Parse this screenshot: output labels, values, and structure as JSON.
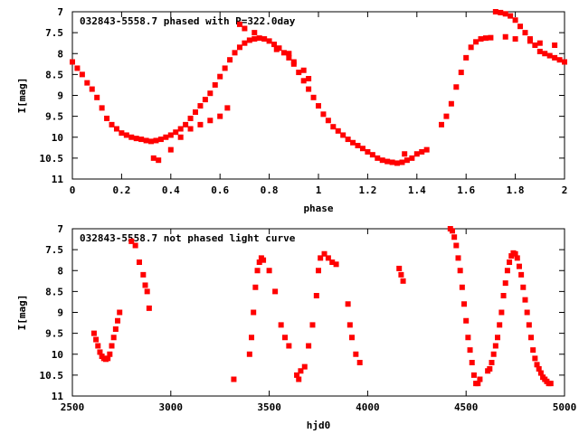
{
  "chart_data": [
    {
      "type": "scatter",
      "title": "032843-5558.7 phased with P=322.0day",
      "xlabel": "phase",
      "ylabel": "I[mag]",
      "xlim": [
        0,
        2
      ],
      "ylim": [
        11,
        7
      ],
      "y_inverted": true,
      "xticks": [
        "0",
        "0.2",
        "0.4",
        "0.6",
        "0.8",
        "1",
        "1.2",
        "1.4",
        "1.6",
        "1.8",
        "2"
      ],
      "yticks": [
        "7",
        "7.5",
        "8",
        "8.5",
        "9",
        "9.5",
        "10",
        "10.5",
        "11"
      ],
      "marker_color": "#ff0000",
      "series": [
        {
          "x": [
            0.0,
            0.02,
            0.04,
            0.06,
            0.08,
            0.1,
            0.12,
            0.14,
            0.16,
            0.18,
            0.2,
            0.22,
            0.24,
            0.26,
            0.28,
            0.3,
            0.32,
            0.34,
            0.36,
            0.38,
            0.4,
            0.42,
            0.44,
            0.46,
            0.48,
            0.5,
            0.52,
            0.54,
            0.56,
            0.58,
            0.6,
            0.62,
            0.64,
            0.66,
            0.68,
            0.7,
            0.72,
            0.74,
            0.76,
            0.78,
            0.8,
            0.82,
            0.84,
            0.86,
            0.88,
            0.9,
            0.92,
            0.94,
            0.96,
            0.98,
            1.0,
            1.02,
            1.04,
            1.06,
            1.08,
            1.1,
            1.12,
            1.14,
            1.16,
            1.18,
            1.2,
            1.22,
            1.24,
            1.26,
            1.28,
            1.3,
            1.32,
            1.34,
            1.36,
            1.38,
            1.4,
            1.5,
            1.52,
            1.54,
            1.56,
            1.58,
            1.6,
            1.62,
            1.64,
            1.66,
            1.68,
            1.7,
            1.72,
            1.74,
            1.76,
            1.78,
            1.8,
            1.82,
            1.84,
            1.86,
            1.88,
            1.9,
            1.92,
            1.94,
            1.96,
            1.98,
            2.0,
            0.33,
            0.35,
            0.4,
            0.44,
            0.48,
            0.52,
            0.56,
            0.6,
            0.63,
            0.68,
            0.7,
            0.74,
            0.83,
            0.88,
            0.9,
            0.94,
            0.96,
            1.35,
            1.42,
            1.44,
            1.76,
            1.8,
            1.86,
            1.9,
            1.96
          ],
          "y": [
            8.2,
            8.35,
            8.5,
            8.7,
            8.85,
            9.05,
            9.3,
            9.55,
            9.7,
            9.8,
            9.9,
            9.95,
            10.0,
            10.03,
            10.05,
            10.08,
            10.1,
            10.08,
            10.05,
            10.0,
            9.95,
            9.88,
            9.8,
            9.7,
            9.55,
            9.4,
            9.25,
            9.1,
            8.95,
            8.75,
            8.55,
            8.35,
            8.15,
            7.98,
            7.85,
            7.75,
            7.68,
            7.65,
            7.63,
            7.65,
            7.7,
            7.78,
            7.87,
            7.98,
            8.1,
            8.25,
            8.45,
            8.65,
            8.85,
            9.05,
            9.25,
            9.45,
            9.6,
            9.75,
            9.85,
            9.95,
            10.05,
            10.13,
            10.2,
            10.27,
            10.35,
            10.42,
            10.5,
            10.55,
            10.58,
            10.6,
            10.62,
            10.6,
            10.55,
            10.5,
            10.4,
            9.7,
            9.5,
            9.2,
            8.8,
            8.45,
            8.1,
            7.85,
            7.72,
            7.65,
            7.63,
            7.62,
            7.0,
            7.02,
            7.05,
            7.1,
            7.2,
            7.35,
            7.5,
            7.65,
            7.8,
            7.95,
            8.0,
            8.05,
            8.1,
            8.15,
            8.2,
            10.5,
            10.55,
            10.3,
            10.0,
            9.8,
            9.7,
            9.6,
            9.5,
            9.3,
            7.3,
            7.4,
            7.5,
            7.9,
            8.0,
            8.2,
            8.4,
            8.6,
            10.4,
            10.35,
            10.3,
            7.6,
            7.65,
            7.7,
            7.75,
            7.8
          ]
        }
      ]
    },
    {
      "type": "scatter",
      "title": "032843-5558.7 not phased light curve",
      "xlabel": "hjd0",
      "ylabel": "I[mag]",
      "xlim": [
        2500,
        5000
      ],
      "ylim": [
        11,
        7
      ],
      "y_inverted": true,
      "xticks": [
        "2500",
        "3000",
        "3500",
        "4000",
        "4500",
        "5000"
      ],
      "yticks": [
        "7",
        "7.5",
        "8",
        "8.5",
        "9",
        "9.5",
        "10",
        "10.5",
        "11"
      ],
      "marker_color": "#ff0000",
      "series": [
        {
          "x": [
            2610,
            2620,
            2630,
            2640,
            2650,
            2660,
            2670,
            2680,
            2690,
            2700,
            2710,
            2720,
            2730,
            2740,
            2800,
            2820,
            2840,
            2860,
            2870,
            2880,
            2890,
            3320,
            3400,
            3410,
            3420,
            3430,
            3440,
            3450,
            3460,
            3470,
            3500,
            3530,
            3560,
            3580,
            3600,
            3640,
            3650,
            3660,
            3680,
            3700,
            3720,
            3740,
            3750,
            3760,
            3780,
            3800,
            3820,
            3840,
            3900,
            3910,
            3920,
            3940,
            3960,
            4160,
            4170,
            4180,
            4420,
            4430,
            4440,
            4450,
            4460,
            4470,
            4480,
            4490,
            4500,
            4510,
            4520,
            4530,
            4540,
            4550,
            4560,
            4570,
            4610,
            4620,
            4630,
            4640,
            4650,
            4660,
            4670,
            4680,
            4690,
            4700,
            4710,
            4720,
            4730,
            4740,
            4750,
            4760,
            4770,
            4780,
            4790,
            4800,
            4810,
            4820,
            4830,
            4840,
            4850,
            4860,
            4870,
            4880,
            4890,
            4900,
            4910,
            4920,
            4930
          ],
          "y": [
            9.5,
            9.65,
            9.8,
            9.95,
            10.05,
            10.1,
            10.12,
            10.1,
            10.0,
            9.8,
            9.6,
            9.4,
            9.2,
            9.0,
            7.3,
            7.4,
            7.8,
            8.1,
            8.35,
            8.5,
            8.9,
            10.6,
            10.0,
            9.6,
            9.0,
            8.4,
            8.0,
            7.8,
            7.7,
            7.75,
            8.0,
            8.5,
            9.3,
            9.6,
            9.8,
            10.5,
            10.6,
            10.4,
            10.3,
            9.8,
            9.3,
            8.6,
            8.0,
            7.7,
            7.6,
            7.7,
            7.8,
            7.85,
            8.8,
            9.3,
            9.6,
            10.0,
            10.2,
            7.95,
            8.1,
            8.25,
            7.0,
            7.05,
            7.2,
            7.4,
            7.7,
            8.0,
            8.4,
            8.8,
            9.2,
            9.6,
            9.9,
            10.2,
            10.5,
            10.7,
            10.7,
            10.6,
            10.4,
            10.35,
            10.2,
            10.0,
            9.8,
            9.6,
            9.3,
            9.0,
            8.6,
            8.3,
            8.0,
            7.8,
            7.65,
            7.58,
            7.6,
            7.7,
            7.9,
            8.1,
            8.4,
            8.7,
            9.0,
            9.3,
            9.6,
            9.9,
            10.1,
            10.25,
            10.35,
            10.45,
            10.55,
            10.6,
            10.65,
            10.7,
            10.7
          ]
        }
      ]
    }
  ]
}
